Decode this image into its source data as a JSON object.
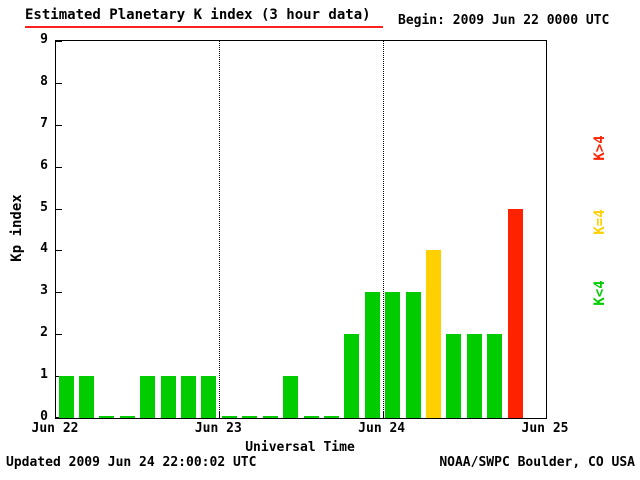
{
  "header": {
    "title": "Estimated Planetary K index (3 hour data)",
    "begin_label": "Begin:",
    "begin_value": "2009 Jun 22 0000 UTC"
  },
  "footer": {
    "updated": "Updated 2009 Jun 24 22:00:02 UTC",
    "source": "NOAA/SWPC Boulder, CO USA"
  },
  "legend": [
    {
      "label": "K>4",
      "color": "#ff2200"
    },
    {
      "label": "K=4",
      "color": "#ffd000"
    },
    {
      "label": "K<4",
      "color": "#00cc00"
    }
  ],
  "chart_data": {
    "type": "bar",
    "title": "Estimated Planetary K index (3 hour data)",
    "xlabel": "Universal Time",
    "ylabel": "Kp index",
    "ylim": [
      0,
      9
    ],
    "yticks": [
      0,
      1,
      2,
      3,
      4,
      5,
      6,
      7,
      8,
      9
    ],
    "xtick_labels": [
      "Jun 22",
      "Jun 23",
      "Jun 24",
      "Jun 25"
    ],
    "days": 3,
    "bar_interval_hours": 3,
    "bars_per_day": 8,
    "values": [
      1,
      1,
      0,
      0,
      1,
      1,
      1,
      1,
      0,
      0,
      0,
      1,
      0,
      0,
      2,
      3,
      3,
      3,
      4,
      2,
      2,
      2,
      5
    ],
    "value_times_utc": [
      "Jun 22 00-03",
      "Jun 22 03-06",
      "Jun 22 06-09",
      "Jun 22 09-12",
      "Jun 22 12-15",
      "Jun 22 15-18",
      "Jun 22 18-21",
      "Jun 22 21-24",
      "Jun 23 00-03",
      "Jun 23 03-06",
      "Jun 23 06-09",
      "Jun 23 09-12",
      "Jun 23 12-15",
      "Jun 23 15-18",
      "Jun 23 18-21",
      "Jun 23 21-24",
      "Jun 24 00-03",
      "Jun 24 03-06",
      "Jun 24 06-09",
      "Jun 24 09-12",
      "Jun 24 12-15",
      "Jun 24 15-18",
      "Jun 24 18-21"
    ],
    "colors": {
      "low": "#00cc00",
      "mid": "#ffd000",
      "high": "#ff2200"
    },
    "color_rule": "green when K<4, yellow when K=4, red when K>4",
    "grid": "dotted vertical lines at interior day boundaries",
    "legend_position": "right side, rotated 90"
  }
}
